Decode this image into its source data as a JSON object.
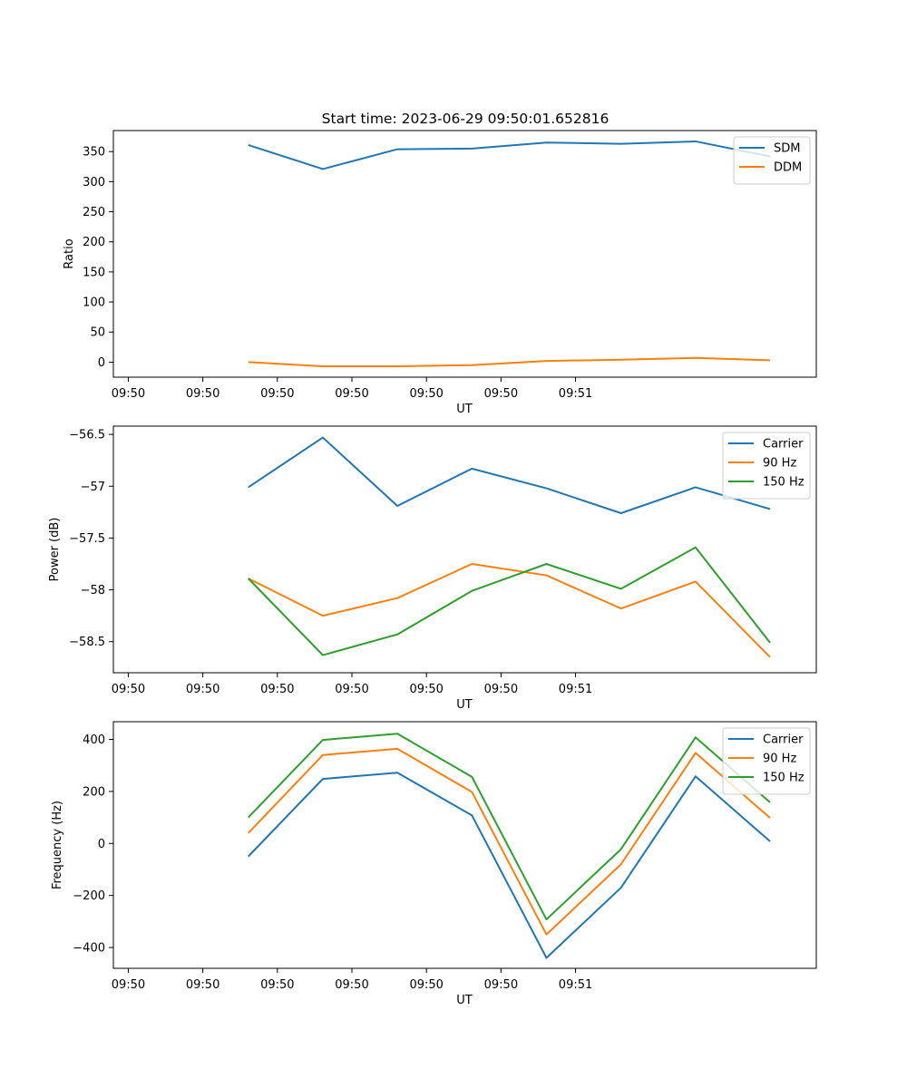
{
  "figure": {
    "title": "Start time: 2023-06-29 09:50:01.652816"
  },
  "chart_data": [
    {
      "type": "line",
      "title": "Start time: 2023-06-29 09:50:01.652816",
      "xlabel": "UT",
      "ylabel": "Ratio",
      "x": [
        "09:50:02.65",
        "09:50:03.65",
        "09:50:04.65",
        "09:50:05.65",
        "09:50:06.65",
        "09:50:07.65",
        "09:50:08.65",
        "09:50:09.65"
      ],
      "x_ticks": [
        "09:50",
        "09:50",
        "09:50",
        "09:50",
        "09:50",
        "09:50",
        "09:51"
      ],
      "ylim": [
        -25,
        385
      ],
      "y_ticks": [
        0,
        50,
        100,
        150,
        200,
        250,
        300,
        350
      ],
      "legend": "upper right",
      "grid": false,
      "series": [
        {
          "name": "SDM",
          "color": "#1f77b4",
          "values": [
            361,
            321,
            354,
            355,
            365,
            363,
            367,
            342
          ]
        },
        {
          "name": "DDM",
          "color": "#ff7f0e",
          "values": [
            0,
            -7,
            -7,
            -5,
            2,
            4,
            7,
            3
          ]
        }
      ]
    },
    {
      "type": "line",
      "title": "",
      "xlabel": "UT",
      "ylabel": "Power (dB)",
      "x": [
        "09:50:02.65",
        "09:50:03.65",
        "09:50:04.65",
        "09:50:05.65",
        "09:50:06.65",
        "09:50:07.65",
        "09:50:08.65",
        "09:50:09.65"
      ],
      "x_ticks": [
        "09:50",
        "09:50",
        "09:50",
        "09:50",
        "09:50",
        "09:50",
        "09:51"
      ],
      "ylim": [
        -58.8,
        -56.42
      ],
      "y_ticks": [
        -58.5,
        -58.0,
        -57.5,
        -57.0,
        -56.5
      ],
      "legend": "upper right",
      "grid": false,
      "series": [
        {
          "name": "Carrier",
          "color": "#1f77b4",
          "values": [
            -57.01,
            -56.53,
            -57.19,
            -56.83,
            -57.02,
            -57.26,
            -57.01,
            -57.22
          ]
        },
        {
          "name": "90 Hz",
          "color": "#ff7f0e",
          "values": [
            -57.89,
            -58.25,
            -58.08,
            -57.75,
            -57.86,
            -58.18,
            -57.92,
            -58.65
          ]
        },
        {
          "name": "150 Hz",
          "color": "#2ca02c",
          "values": [
            -57.89,
            -58.63,
            -58.43,
            -58.01,
            -57.75,
            -57.99,
            -57.59,
            -58.51
          ]
        }
      ]
    },
    {
      "type": "line",
      "title": "",
      "xlabel": "UT",
      "ylabel": "Frequency (Hz)",
      "x": [
        "09:50:02.65",
        "09:50:03.65",
        "09:50:04.65",
        "09:50:05.65",
        "09:50:06.65",
        "09:50:07.65",
        "09:50:08.65",
        "09:50:09.65"
      ],
      "x_ticks": [
        "09:50",
        "09:50",
        "09:50",
        "09:50",
        "09:50",
        "09:50",
        "09:51"
      ],
      "ylim": [
        -480,
        468
      ],
      "y_ticks": [
        -400,
        -200,
        0,
        200,
        400
      ],
      "legend": "upper right",
      "grid": false,
      "series": [
        {
          "name": "Carrier",
          "color": "#1f77b4",
          "values": [
            -50,
            248,
            272,
            108,
            -440,
            -170,
            258,
            8
          ]
        },
        {
          "name": "90 Hz",
          "color": "#ff7f0e",
          "values": [
            40,
            340,
            364,
            198,
            -350,
            -80,
            348,
            98
          ]
        },
        {
          "name": "150 Hz",
          "color": "#2ca02c",
          "values": [
            100,
            398,
            422,
            256,
            -292,
            -22,
            408,
            158
          ]
        }
      ]
    }
  ]
}
